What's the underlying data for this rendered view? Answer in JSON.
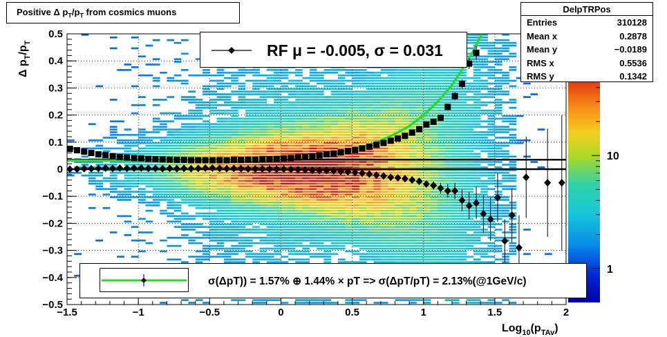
{
  "title": "Positive Δ p_T/p_T from cosmics muons",
  "title_parts": {
    "a": "Positive Δ p",
    "b": "T",
    "c": "/p",
    "d": "T",
    "e": " from cosmics muons"
  },
  "stats": {
    "name": "DelpTRPos",
    "rows": [
      {
        "label": "Entries",
        "value": "310128"
      },
      {
        "label": "Mean x",
        "value": "0.2878"
      },
      {
        "label": "Mean y",
        "value": "−0.0189"
      },
      {
        "label": "RMS x",
        "value": "0.5536"
      },
      {
        "label": "RMS y",
        "value": "0.1342"
      }
    ]
  },
  "fit_legend": "RF μ = -0.005, σ =   0.031",
  "resolution_legend": "σ(ΔpT)) =  1.57% ⊕  1.44% × pT => σ(ΔpT/pT) =  2.13%(@1GeV/c)",
  "chart_data": {
    "type": "heatmap",
    "title": "Positive Δ p_T/p_T from cosmics muons",
    "xlabel": "Log10(pTAv)",
    "xlabel_parts": {
      "a": "Log",
      "b": "10",
      "c": "(p",
      "d": "TAv",
      "e": ")"
    },
    "ylabel": "Δ p_T/p_T",
    "ylabel_parts": {
      "a": "Δ p",
      "b": "T",
      "c": "/p",
      "d": "T"
    },
    "xlim": [
      -1.5,
      2.0
    ],
    "ylim": [
      -0.5,
      0.5
    ],
    "x_ticks": [
      -1.5,
      -1,
      -0.5,
      0,
      0.5,
      1,
      1.5,
      2
    ],
    "x_tick_labels": [
      "−1.5",
      "−1",
      "−0.5",
      "0",
      "0.5",
      "1",
      "1.5",
      "2"
    ],
    "y_ticks": [
      -0.5,
      -0.4,
      -0.3,
      -0.2,
      -0.1,
      0,
      0.1,
      0.2,
      0.3,
      0.4,
      0.5
    ],
    "y_tick_labels": [
      "−0.5",
      "−0.4",
      "−0.3",
      "−0.2",
      "−0.1",
      "0",
      "0.1",
      "0.2",
      "0.3",
      "0.4",
      "0.5"
    ],
    "grid": true,
    "colorbar": {
      "scale": "log",
      "tick_labels": [
        "1",
        "10"
      ],
      "tick_values": [
        1,
        10
      ],
      "range": [
        0.5,
        60
      ]
    },
    "horizontal_lines": [
      0,
      0.035
    ],
    "mean_series": {
      "name": "mean",
      "x": [
        -1.48,
        -1.43,
        -1.38,
        -1.33,
        -1.28,
        -1.23,
        -1.18,
        -1.13,
        -1.08,
        -1.03,
        -0.98,
        -0.93,
        -0.88,
        -0.83,
        -0.78,
        -0.73,
        -0.68,
        -0.63,
        -0.58,
        -0.53,
        -0.48,
        -0.43,
        -0.38,
        -0.33,
        -0.28,
        -0.23,
        -0.18,
        -0.13,
        -0.08,
        -0.03,
        0.02,
        0.07,
        0.12,
        0.17,
        0.22,
        0.27,
        0.32,
        0.37,
        0.42,
        0.47,
        0.52,
        0.57,
        0.62,
        0.67,
        0.72,
        0.77,
        0.82,
        0.87,
        0.92,
        0.97,
        1.02,
        1.07,
        1.12,
        1.17,
        1.22,
        1.27,
        1.32,
        1.37,
        1.42,
        1.47,
        1.52,
        1.57,
        1.62,
        1.67,
        1.72,
        1.87,
        1.97
      ],
      "y": [
        0.0,
        0.0,
        0.002,
        0.002,
        0.003,
        0.004,
        0.003,
        0.004,
        0.003,
        0.004,
        0.004,
        0.003,
        0.003,
        0.002,
        0.003,
        0.002,
        0.003,
        0.002,
        0.003,
        0.004,
        0.004,
        0.003,
        0.002,
        0.003,
        0.002,
        0.001,
        0.001,
        0.001,
        0.0,
        0.0,
        0.0,
        -0.001,
        -0.002,
        -0.003,
        -0.004,
        -0.005,
        -0.005,
        -0.006,
        -0.008,
        -0.01,
        -0.012,
        -0.015,
        -0.018,
        -0.022,
        -0.025,
        -0.03,
        -0.032,
        -0.035,
        -0.04,
        -0.045,
        -0.055,
        -0.06,
        -0.07,
        -0.08,
        -0.08,
        -0.115,
        -0.135,
        -0.125,
        -0.165,
        -0.185,
        -0.105,
        -0.265,
        -0.17,
        -0.29,
        -0.03,
        -0.05,
        -0.05
      ],
      "err": [
        0.003,
        0.003,
        0.003,
        0.003,
        0.003,
        0.003,
        0.003,
        0.003,
        0.003,
        0.003,
        0.003,
        0.003,
        0.003,
        0.003,
        0.003,
        0.003,
        0.003,
        0.003,
        0.003,
        0.003,
        0.003,
        0.003,
        0.003,
        0.003,
        0.003,
        0.003,
        0.003,
        0.003,
        0.003,
        0.003,
        0.003,
        0.003,
        0.003,
        0.003,
        0.003,
        0.003,
        0.003,
        0.003,
        0.003,
        0.003,
        0.004,
        0.004,
        0.004,
        0.005,
        0.005,
        0.006,
        0.006,
        0.007,
        0.008,
        0.01,
        0.012,
        0.015,
        0.02,
        0.025,
        0.03,
        0.04,
        0.05,
        0.06,
        0.07,
        0.08,
        0.09,
        0.08,
        0.1,
        0.12,
        0.15,
        0.2,
        0.25
      ]
    },
    "sigma_series": {
      "name": "sigma",
      "x": [
        -1.48,
        -1.43,
        -1.38,
        -1.33,
        -1.28,
        -1.23,
        -1.18,
        -1.13,
        -1.08,
        -1.03,
        -0.98,
        -0.93,
        -0.88,
        -0.83,
        -0.78,
        -0.73,
        -0.68,
        -0.63,
        -0.58,
        -0.53,
        -0.48,
        -0.43,
        -0.38,
        -0.33,
        -0.28,
        -0.23,
        -0.18,
        -0.13,
        -0.08,
        -0.03,
        0.02,
        0.07,
        0.12,
        0.17,
        0.22,
        0.27,
        0.32,
        0.37,
        0.42,
        0.47,
        0.52,
        0.57,
        0.62,
        0.67,
        0.72,
        0.77,
        0.82,
        0.87,
        0.92,
        0.97,
        1.02,
        1.07,
        1.12,
        1.17,
        1.22,
        1.27,
        1.32,
        1.37
      ],
      "y": [
        0.075,
        0.07,
        0.065,
        0.06,
        0.055,
        0.052,
        0.048,
        0.045,
        0.043,
        0.041,
        0.04,
        0.038,
        0.037,
        0.036,
        0.035,
        0.034,
        0.034,
        0.033,
        0.033,
        0.033,
        0.033,
        0.033,
        0.033,
        0.034,
        0.034,
        0.035,
        0.035,
        0.036,
        0.037,
        0.038,
        0.04,
        0.041,
        0.043,
        0.045,
        0.048,
        0.051,
        0.055,
        0.058,
        0.062,
        0.067,
        0.071,
        0.077,
        0.083,
        0.09,
        0.097,
        0.105,
        0.113,
        0.123,
        0.135,
        0.148,
        0.165,
        0.175,
        0.19,
        0.23,
        0.27,
        0.315,
        0.39,
        0.43
      ],
      "err": [
        0.004,
        0.004,
        0.003,
        0.003,
        0.003,
        0.003,
        0.003,
        0.003,
        0.003,
        0.003,
        0.003,
        0.003,
        0.003,
        0.003,
        0.003,
        0.003,
        0.003,
        0.003,
        0.003,
        0.003,
        0.003,
        0.003,
        0.003,
        0.003,
        0.003,
        0.003,
        0.003,
        0.003,
        0.003,
        0.003,
        0.003,
        0.003,
        0.003,
        0.003,
        0.003,
        0.003,
        0.003,
        0.003,
        0.003,
        0.003,
        0.003,
        0.004,
        0.004,
        0.004,
        0.004,
        0.005,
        0.005,
        0.006,
        0.006,
        0.007,
        0.008,
        0.009,
        0.01,
        0.012,
        0.014,
        0.016,
        0.02,
        0.025
      ]
    },
    "fit_curve": {
      "name": "resolution fit",
      "color": "#22dd22",
      "x": [
        -1.5,
        -1.4,
        -1.3,
        -1.2,
        -1.1,
        -1.0,
        -0.9,
        -0.8,
        -0.7,
        -0.6,
        -0.5,
        -0.4,
        -0.3,
        -0.2,
        -0.1,
        0.0,
        0.1,
        0.2,
        0.3,
        0.4,
        0.5,
        0.6,
        0.7,
        0.8,
        0.9,
        1.0,
        1.1,
        1.2,
        1.3,
        1.35,
        1.4,
        1.45
      ],
      "y": [
        0.0316,
        0.0316,
        0.0317,
        0.0317,
        0.0318,
        0.0318,
        0.0319,
        0.0321,
        0.0323,
        0.0326,
        0.033,
        0.0336,
        0.0344,
        0.0357,
        0.0375,
        0.0398,
        0.0432,
        0.0478,
        0.0541,
        0.0621,
        0.0731,
        0.0871,
        0.1061,
        0.1301,
        0.1591,
        0.2001,
        0.2491,
        0.3111,
        0.3911,
        0.4381,
        0.4901,
        0.548
      ]
    }
  },
  "colors": {
    "mean_marker": "#000000",
    "fit_line": "#22dd22",
    "hline": "#000000"
  }
}
